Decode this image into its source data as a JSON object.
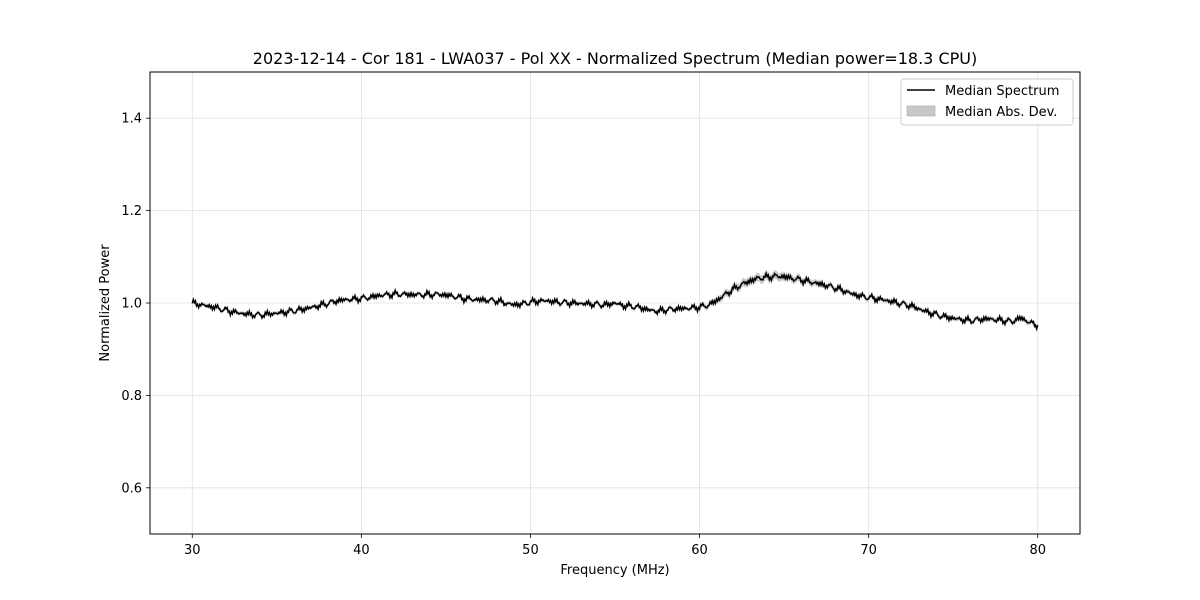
{
  "chart_data": {
    "type": "line",
    "title": "2023-12-14 - Cor 181 - LWA037 - Pol XX - Normalized Spectrum (Median power=18.3 CPU)",
    "xlabel": "Frequency (MHz)",
    "ylabel": "Normalized Power",
    "xlim": [
      27.5,
      82.5
    ],
    "ylim": [
      0.5,
      1.5
    ],
    "xticks": [
      30,
      40,
      50,
      60,
      70,
      80
    ],
    "yticks": [
      0.6,
      0.8,
      1.0,
      1.2,
      1.4
    ],
    "xtick_labels": [
      "30",
      "40",
      "50",
      "60",
      "70",
      "80"
    ],
    "ytick_labels": [
      "0.6",
      "0.8",
      "1.0",
      "1.2",
      "1.4"
    ],
    "grid": true,
    "legend_position": "top-right",
    "legend": [
      "Median Spectrum",
      "Median Abs. Dev."
    ],
    "series": [
      {
        "name": "Median Spectrum",
        "color": "#000000",
        "x": [
          30,
          30.5,
          31,
          31.5,
          32,
          32.5,
          33,
          33.5,
          34,
          34.5,
          35,
          35.5,
          36,
          36.5,
          37,
          37.5,
          38,
          38.5,
          39,
          39.5,
          40,
          40.5,
          41,
          41.5,
          42,
          42.5,
          43,
          43.5,
          44,
          44.5,
          45,
          45.5,
          46,
          46.5,
          47,
          47.5,
          48,
          48.5,
          49,
          49.5,
          50,
          50.5,
          51,
          51.5,
          52,
          52.5,
          53,
          53.5,
          54,
          54.5,
          55,
          55.5,
          56,
          56.5,
          57,
          57.5,
          58,
          58.5,
          59,
          59.5,
          60,
          60.5,
          61,
          61.5,
          62,
          62.5,
          63,
          63.5,
          64,
          64.5,
          65,
          65.5,
          66,
          66.5,
          67,
          67.5,
          68,
          68.5,
          69,
          69.5,
          70,
          70.5,
          71,
          71.5,
          72,
          72.5,
          73,
          73.5,
          74,
          74.5,
          75,
          75.5,
          76,
          76.5,
          77,
          77.5,
          78,
          78.5,
          79,
          79.5,
          80
        ],
        "y": [
          1.0,
          0.996,
          0.993,
          0.989,
          0.984,
          0.98,
          0.977,
          0.975,
          0.974,
          0.976,
          0.978,
          0.98,
          0.983,
          0.986,
          0.99,
          0.994,
          0.999,
          1.004,
          1.007,
          1.008,
          1.01,
          1.012,
          1.016,
          1.018,
          1.019,
          1.019,
          1.018,
          1.018,
          1.018,
          1.019,
          1.017,
          1.014,
          1.01,
          1.008,
          1.007,
          1.006,
          1.005,
          1.0,
          0.996,
          0.998,
          1.002,
          1.004,
          1.005,
          1.002,
          1.001,
          1.0,
          0.999,
          0.998,
          0.997,
          0.996,
          1.0,
          0.994,
          0.993,
          0.99,
          0.985,
          0.982,
          0.985,
          0.987,
          0.988,
          0.989,
          0.991,
          0.995,
          1.005,
          1.018,
          1.03,
          1.04,
          1.048,
          1.054,
          1.056,
          1.058,
          1.057,
          1.053,
          1.05,
          1.046,
          1.042,
          1.038,
          1.033,
          1.027,
          1.02,
          1.015,
          1.012,
          1.009,
          1.006,
          1.002,
          0.998,
          0.994,
          0.987,
          0.98,
          0.975,
          0.97,
          0.967,
          0.964,
          0.962,
          0.964,
          0.966,
          0.964,
          0.962,
          0.96,
          0.968,
          0.958,
          0.952
        ],
        "mad": [
          0.004,
          0.004,
          0.004,
          0.004,
          0.004,
          0.004,
          0.004,
          0.004,
          0.004,
          0.004,
          0.004,
          0.004,
          0.004,
          0.004,
          0.004,
          0.004,
          0.004,
          0.004,
          0.004,
          0.004,
          0.004,
          0.004,
          0.004,
          0.004,
          0.004,
          0.004,
          0.004,
          0.004,
          0.004,
          0.004,
          0.004,
          0.004,
          0.004,
          0.004,
          0.004,
          0.004,
          0.004,
          0.004,
          0.004,
          0.004,
          0.004,
          0.004,
          0.004,
          0.004,
          0.004,
          0.004,
          0.004,
          0.004,
          0.004,
          0.004,
          0.004,
          0.004,
          0.004,
          0.004,
          0.004,
          0.004,
          0.004,
          0.004,
          0.004,
          0.004,
          0.005,
          0.006,
          0.007,
          0.008,
          0.008,
          0.009,
          0.009,
          0.009,
          0.009,
          0.009,
          0.009,
          0.008,
          0.008,
          0.007,
          0.007,
          0.006,
          0.006,
          0.006,
          0.005,
          0.005,
          0.005,
          0.005,
          0.005,
          0.005,
          0.005,
          0.005,
          0.005,
          0.005,
          0.005,
          0.005,
          0.005,
          0.005,
          0.005,
          0.005,
          0.005,
          0.005,
          0.005,
          0.005,
          0.005,
          0.005,
          0.005
        ]
      }
    ],
    "mad_fill_color": "#c8c8c8"
  }
}
